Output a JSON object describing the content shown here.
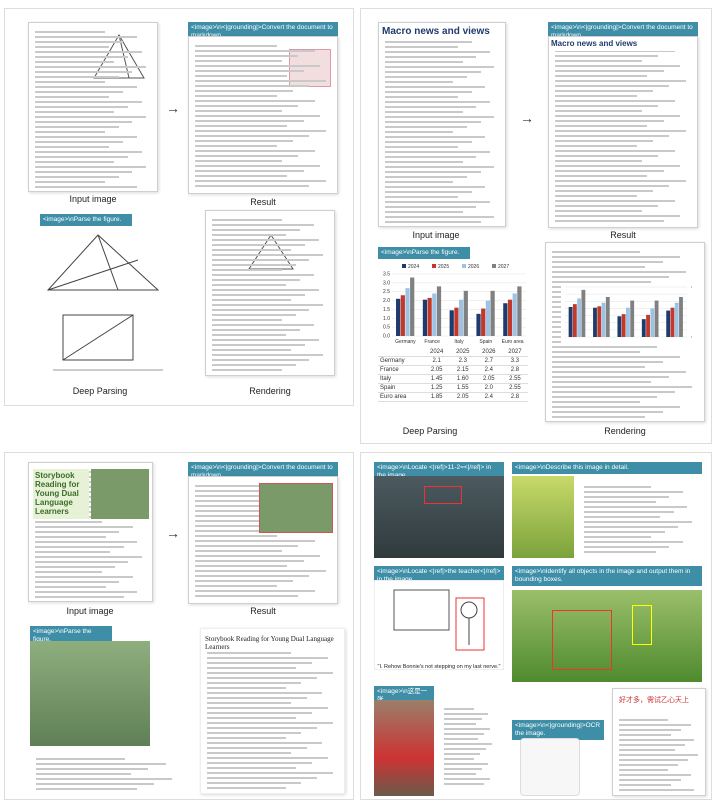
{
  "doc_panel": {
    "input_label": "Input image",
    "result_label": "Result",
    "prompt_markdown": "<image>\\n<|grounding|>Convert the document to markdown.",
    "prompt_parse": "<image>\\nParse the figure.",
    "deep_parsing_label": "Deep Parsing",
    "rendering_label": "Rendering"
  },
  "macro_panel": {
    "title": "Macro news and views",
    "input_label": "Input image",
    "result_label": "Result",
    "prompt_markdown": "<image>\\n<|grounding|>Convert the document to markdown.",
    "prompt_parse": "<image>\\nParse the figure.",
    "deep_parsing_label": "Deep Parsing",
    "rendering_label": "Rendering",
    "chart": {
      "type": "bar",
      "categories": [
        "Germany",
        "France",
        "Italy",
        "Spain",
        "Euro area"
      ],
      "series": [
        {
          "name": "2024",
          "color": "#1f3b6e",
          "values": [
            2.1,
            2.05,
            1.45,
            1.25,
            1.85
          ]
        },
        {
          "name": "2025",
          "color": "#c0392b",
          "values": [
            2.3,
            2.15,
            1.6,
            1.55,
            2.05
          ]
        },
        {
          "name": "2026",
          "color": "#9cc3e4",
          "values": [
            2.7,
            2.4,
            2.05,
            2.0,
            2.4
          ]
        },
        {
          "name": "2027",
          "color": "#808080",
          "values": [
            3.3,
            2.8,
            2.55,
            2.55,
            2.8
          ]
        }
      ],
      "ylim": [
        0,
        3.5
      ],
      "yticks": [
        {
          "value": 0,
          "label": "0.0"
        },
        0.5,
        {
          "value": 1,
          "label": "1.0"
        },
        1.5,
        {
          "value": 2,
          "label": "2.0"
        },
        2.5,
        {
          "value": 3,
          "label": "3.0"
        },
        3.5
      ]
    },
    "table": {
      "columns": [
        "2024",
        "2025",
        "2026",
        "2027"
      ],
      "rows": [
        {
          "label": "Germany",
          "cells": [
            "2.1",
            "2.3",
            "2.7",
            "3.3"
          ]
        },
        {
          "label": "France",
          "cells": [
            "2.05",
            "2.15",
            "2.4",
            "2.8"
          ]
        },
        {
          "label": "Italy",
          "cells": [
            "1.45",
            "1.60",
            "2.05",
            "2.55"
          ]
        },
        {
          "label": "Spain",
          "cells": [
            "1.25",
            "1.55",
            "2.0",
            "2.55"
          ]
        },
        {
          "label": "Euro area",
          "cells": [
            "1.85",
            "2.05",
            "2.4",
            "2.8"
          ]
        }
      ]
    }
  },
  "story_panel": {
    "doc_title": "Storybook Reading for Young Dual Language Learners",
    "input_label": "Input image",
    "result_label": "Result",
    "prompt_markdown": "<image>\\n<|grounding|>Convert the document to markdown.",
    "prompt_parse": "<image>\\nParse the figure."
  },
  "vision_panel": {
    "prompt_locate_math": "<image>\\nLocate <|ref|>11-2=<|/ref|> in the image.",
    "prompt_describe": "<image>\\nDescribe this image in detail.",
    "prompt_locate_teacher": "<image>\\nLocate <|ref|>the teacher<|/ref|> in the image.",
    "cartoon_caption": "\"I. Rehow Bonnie's not stepping on my last nerve.\"",
    "prompt_identify": "<image>\\nIdentify all objects in the image and output them in bounding boxes.",
    "prompt_chinese": "<image>\\n这是一张",
    "prompt_ocr": "<image>\\n<|grounding|>OCR the image.",
    "ocr_heading": "好才多，需试乙心天上"
  }
}
